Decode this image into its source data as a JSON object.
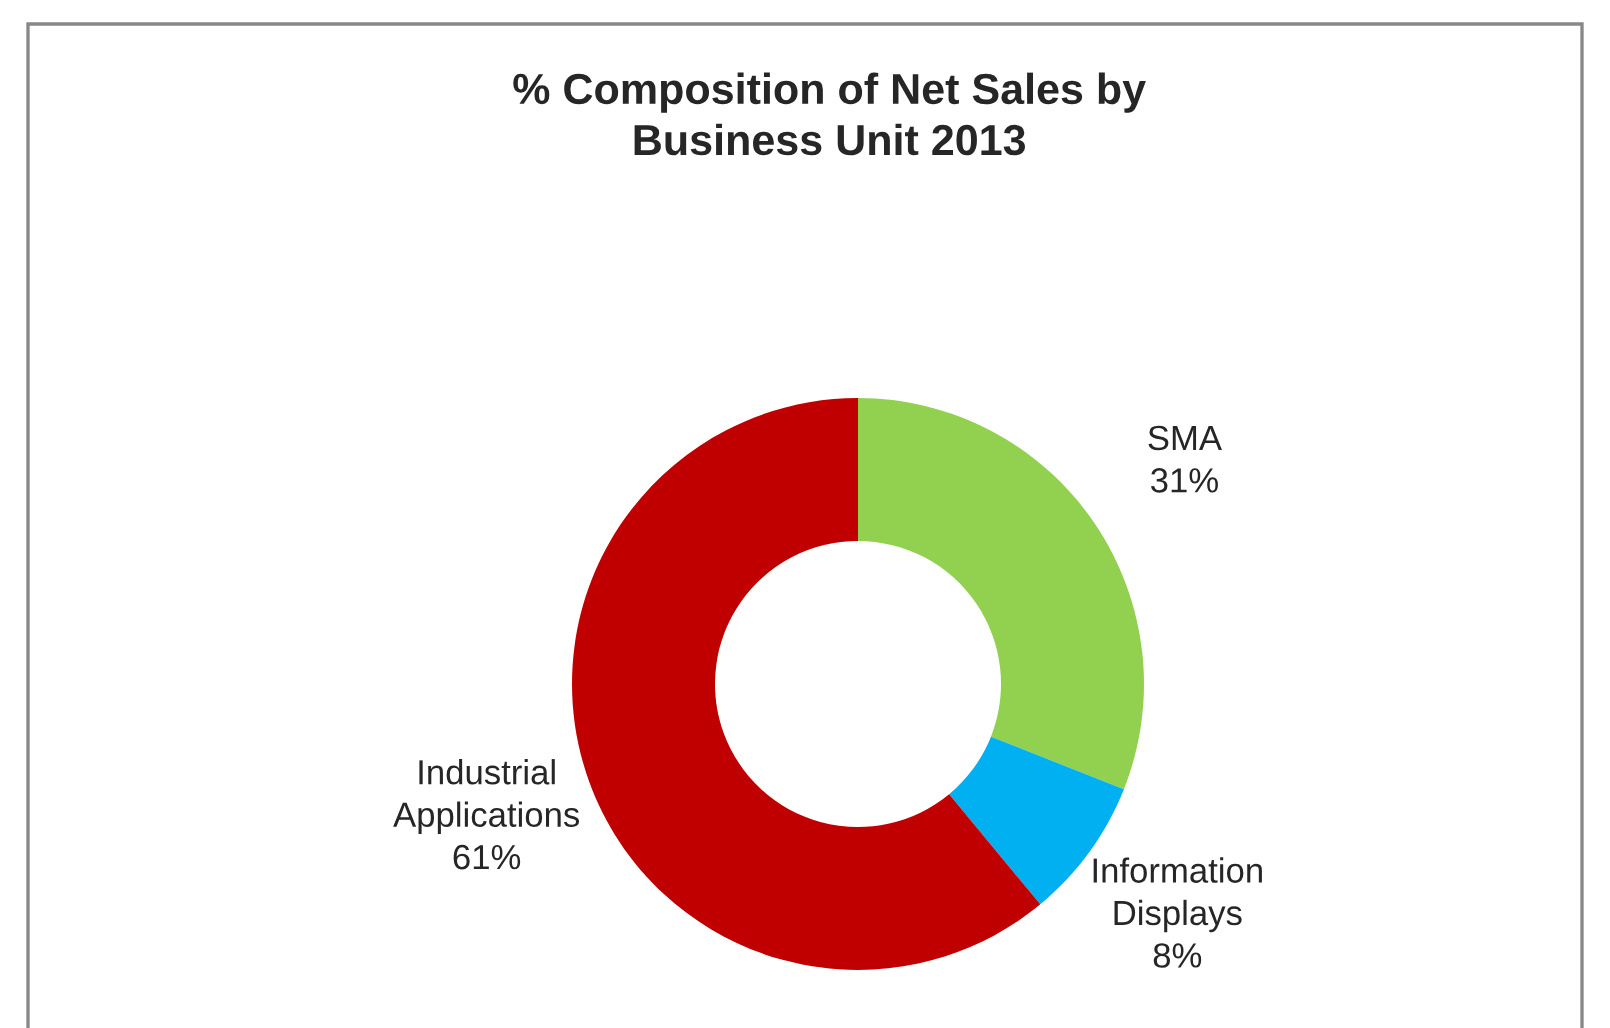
{
  "chart_data": {
    "type": "donut",
    "title": "% Composition of Net Sales by\nBusiness Unit 2013",
    "categories": [
      "SMA",
      "Information\nDisplays",
      "Industrial\nApplications"
    ],
    "values": [
      31,
      8,
      61
    ],
    "colors": [
      "#92d050",
      "#00b0f0",
      "#c00000"
    ],
    "value_labels": [
      "31%",
      "8%",
      "61%"
    ],
    "legend": false
  }
}
